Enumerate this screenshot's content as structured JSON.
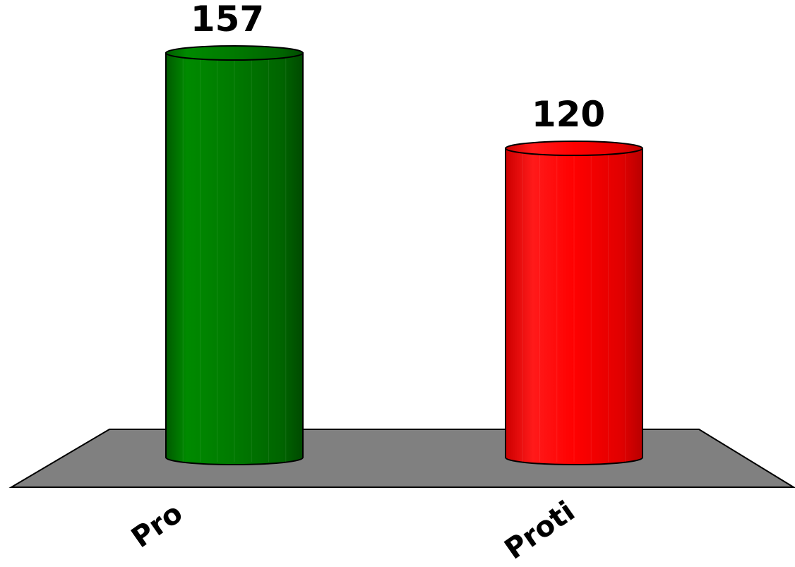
{
  "chart_data": {
    "type": "bar",
    "style": "3d-cylinder",
    "categories": [
      "Pro",
      "Proti"
    ],
    "values": [
      157,
      120
    ],
    "colors": [
      "#007a00",
      "#ff0000"
    ],
    "floor_color": "#808080",
    "title": "",
    "xlabel": "",
    "ylabel": "",
    "ylim": [
      0,
      157
    ],
    "grid": false,
    "legend": "none"
  },
  "labels": {
    "value_0": "157",
    "value_1": "120",
    "category_0": "Pro",
    "category_1": "Proti"
  }
}
